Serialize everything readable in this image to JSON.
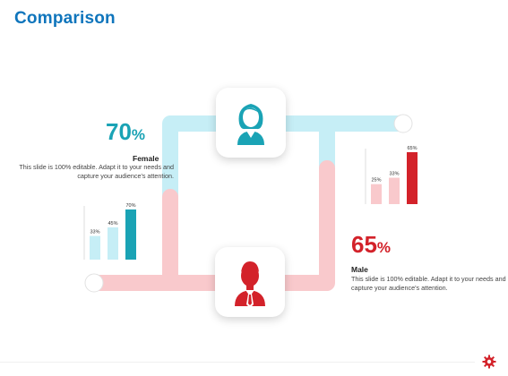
{
  "title": "Comparison",
  "female": {
    "percent_value": "70",
    "percent_symbol": "%",
    "label": "Female",
    "description": "This slide is 100% editable. Adapt it to your needs and capture your audience's attention."
  },
  "male": {
    "percent_value": "65",
    "percent_symbol": "%",
    "label": "Male",
    "description": "This slide is 100% editable. Adapt it to your needs and capture your audience's attention."
  },
  "icons": {
    "female": "female-user-icon",
    "male": "male-user-icon",
    "footer": "gear-icon"
  },
  "colors": {
    "title": "#0f75bc",
    "female_accent": "#1aa3b5",
    "female_light": "#c6eef6",
    "male_accent": "#d3222a",
    "male_light": "#f9c9cc"
  },
  "chart_data": [
    {
      "type": "bar",
      "name_hint": "female",
      "categories": [
        "",
        "",
        ""
      ],
      "values": [
        33,
        45,
        70
      ],
      "labels": [
        "33%",
        "45%",
        "70%"
      ],
      "ylim": [
        0,
        70
      ]
    },
    {
      "type": "bar",
      "name_hint": "male",
      "categories": [
        "",
        "",
        ""
      ],
      "values": [
        25,
        33,
        65
      ],
      "labels": [
        "25%",
        "33%",
        "65%"
      ],
      "ylim": [
        0,
        65
      ]
    }
  ]
}
